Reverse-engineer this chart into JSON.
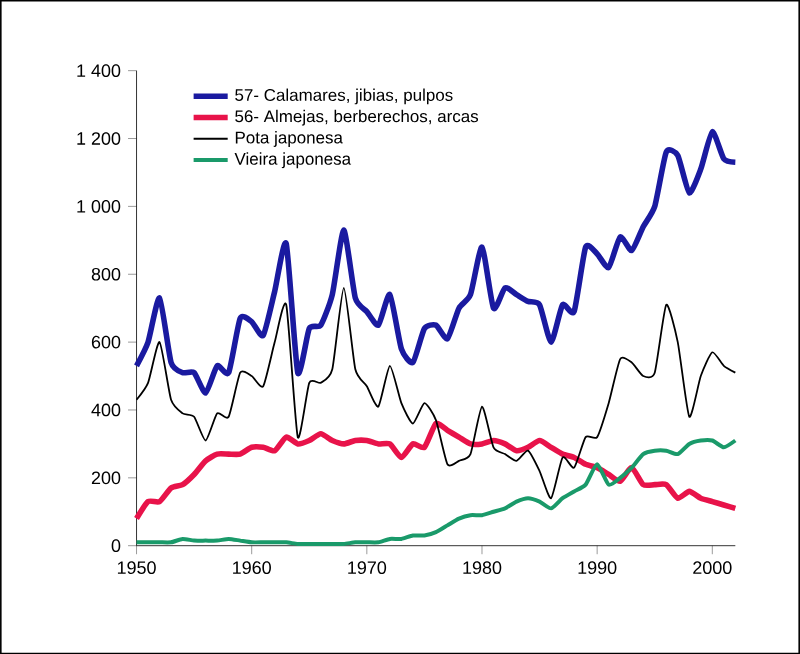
{
  "chart_data": {
    "type": "line",
    "x": [
      1950,
      1951,
      1952,
      1953,
      1954,
      1955,
      1956,
      1957,
      1958,
      1959,
      1960,
      1961,
      1962,
      1963,
      1964,
      1965,
      1966,
      1967,
      1968,
      1969,
      1970,
      1971,
      1972,
      1973,
      1974,
      1975,
      1976,
      1977,
      1978,
      1979,
      1980,
      1981,
      1982,
      1983,
      1984,
      1985,
      1986,
      1987,
      1988,
      1989,
      1990,
      1991,
      1992,
      1993,
      1994,
      1995,
      1996,
      1997,
      1998,
      1999,
      2000,
      2001,
      2002
    ],
    "series": [
      {
        "name": "57- Calamares, jibias, pulpos",
        "color": "#1a1aa0",
        "values": [
          530,
          600,
          730,
          540,
          510,
          510,
          450,
          530,
          510,
          670,
          660,
          620,
          750,
          890,
          510,
          640,
          650,
          740,
          930,
          730,
          690,
          650,
          740,
          580,
          540,
          640,
          650,
          610,
          700,
          740,
          880,
          700,
          760,
          740,
          720,
          710,
          600,
          710,
          690,
          880,
          860,
          820,
          910,
          870,
          940,
          1000,
          1160,
          1150,
          1040,
          1110,
          1220,
          1140,
          1130
        ]
      },
      {
        "name": "56- Almejas, berberechos, arcas",
        "color": "#e8134a",
        "values": [
          80,
          130,
          130,
          170,
          180,
          210,
          250,
          270,
          270,
          270,
          290,
          290,
          280,
          320,
          300,
          310,
          330,
          310,
          300,
          310,
          310,
          300,
          300,
          260,
          300,
          290,
          360,
          340,
          320,
          300,
          300,
          310,
          300,
          280,
          290,
          310,
          290,
          270,
          260,
          240,
          230,
          210,
          190,
          230,
          180,
          180,
          180,
          140,
          160,
          140,
          130,
          120,
          110
        ]
      },
      {
        "name": "Pota japonesa",
        "color": "#000000",
        "values": [
          430,
          480,
          600,
          430,
          390,
          380,
          310,
          390,
          380,
          510,
          500,
          470,
          600,
          710,
          320,
          480,
          480,
          520,
          760,
          520,
          470,
          410,
          530,
          420,
          360,
          420,
          370,
          240,
          250,
          270,
          410,
          290,
          270,
          250,
          280,
          220,
          140,
          260,
          230,
          320,
          320,
          420,
          550,
          540,
          500,
          510,
          710,
          600,
          380,
          500,
          570,
          530,
          510
        ]
      },
      {
        "name": "Vieira japonesa",
        "color": "#1a9a6a",
        "values": [
          10,
          10,
          10,
          10,
          20,
          15,
          15,
          15,
          20,
          15,
          10,
          10,
          10,
          10,
          5,
          5,
          5,
          5,
          5,
          10,
          10,
          10,
          20,
          20,
          30,
          30,
          40,
          60,
          80,
          90,
          90,
          100,
          110,
          130,
          140,
          130,
          110,
          140,
          160,
          180,
          240,
          180,
          200,
          230,
          270,
          280,
          280,
          270,
          300,
          310,
          310,
          290,
          310
        ]
      }
    ],
    "xlim": [
      1950,
      2002
    ],
    "xticks": [
      1950,
      1960,
      1970,
      1980,
      1990,
      2000
    ],
    "ylim": [
      0,
      1400
    ],
    "yticks": [
      0,
      200,
      400,
      600,
      800,
      {
        "value": 1000,
        "label": "1 000"
      },
      {
        "value": 1200,
        "label": "1 200"
      },
      {
        "value": 1400,
        "label": "1 400"
      }
    ],
    "grid": false,
    "legend": "top left",
    "marker": "none",
    "line_style": "solid"
  }
}
